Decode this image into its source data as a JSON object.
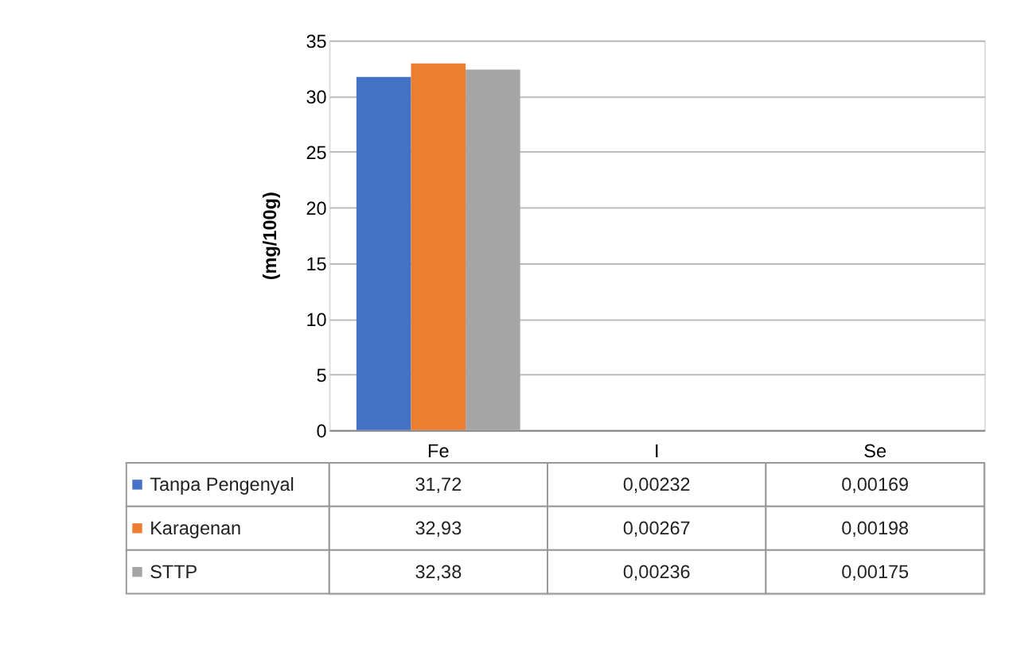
{
  "chart_data": {
    "type": "bar",
    "ylabel": "(mg/100g)",
    "categories": [
      "Fe",
      "I",
      "Se"
    ],
    "series": [
      {
        "name": "Tanpa Pengenyal",
        "color": "#4472c4",
        "values": [
          31.72,
          0.00232,
          0.00169
        ],
        "value_labels": [
          "31,72",
          "0,00232",
          "0,00169"
        ]
      },
      {
        "name": "Karagenan",
        "color": "#ed7d31",
        "values": [
          32.93,
          0.00267,
          0.00198
        ],
        "value_labels": [
          "32,93",
          "0,00267",
          "0,00198"
        ]
      },
      {
        "name": "STTP",
        "color": "#a5a5a5",
        "values": [
          32.38,
          0.00236,
          0.00175
        ],
        "value_labels": [
          "32,38",
          "0,00236",
          "0,00175"
        ]
      }
    ],
    "ylim": [
      0,
      35
    ],
    "yticks": [
      0,
      5,
      10,
      15,
      20,
      25,
      30,
      35
    ],
    "grid": "y",
    "legend": "bottom"
  }
}
